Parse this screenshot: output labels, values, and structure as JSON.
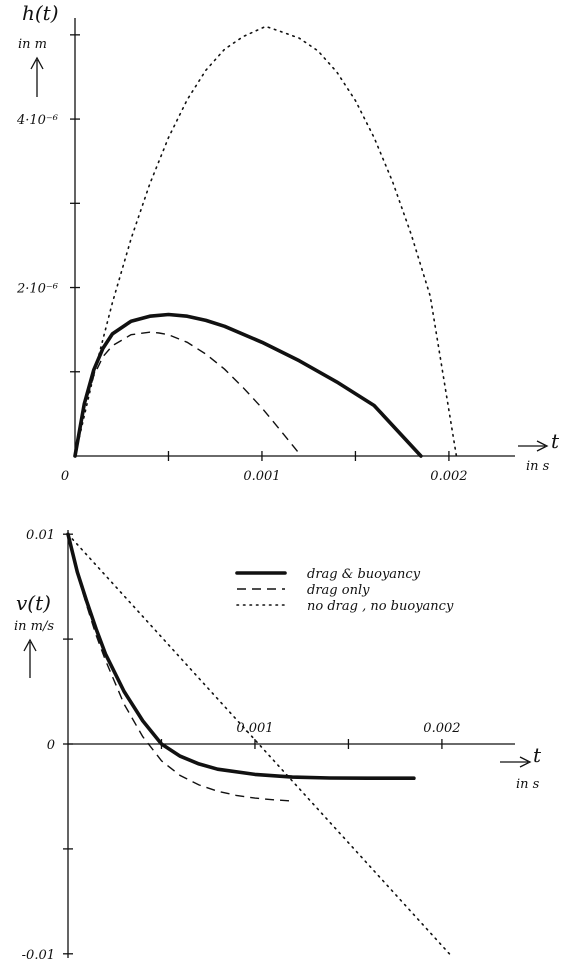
{
  "chart_data": [
    {
      "type": "line",
      "title": "",
      "ylabel": "h(t)",
      "ylabel_unit": "in m",
      "xlabel": "t",
      "xlabel_unit": "in s",
      "xlim": [
        0,
        0.0023
      ],
      "ylim": [
        0,
        5.2e-06
      ],
      "x_tick_labels": [
        {
          "value": 0,
          "label": "0"
        },
        {
          "value": 0.001,
          "label": "0.001"
        },
        {
          "value": 0.002,
          "label": "0.002"
        }
      ],
      "y_tick_labels": [
        {
          "value": 2e-06,
          "label": "2·10⁻⁶"
        },
        {
          "value": 4e-06,
          "label": "4·10⁻⁶"
        }
      ],
      "y_ticks": [
        1e-06,
        2e-06,
        3e-06,
        4e-06,
        5e-06
      ],
      "x_ticks": [
        0.0005,
        0.001,
        0.0015,
        0.002
      ],
      "grid": false,
      "series": [
        {
          "name": "drag & buoyancy",
          "style": "solid",
          "x": [
            0,
            5e-05,
            0.0001,
            0.00015,
            0.0002,
            0.0003,
            0.0004,
            0.0005,
            0.0006,
            0.0007,
            0.0008,
            0.001,
            0.0012,
            0.0014,
            0.0016,
            0.00185
          ],
          "y": [
            0,
            6.2e-07,
            1.02e-06,
            1.28e-06,
            1.45e-06,
            1.6e-06,
            1.66e-06,
            1.68e-06,
            1.66e-06,
            1.61e-06,
            1.54e-06,
            1.35e-06,
            1.13e-06,
            8.8e-07,
            6e-07,
            0
          ]
        },
        {
          "name": "drag only",
          "style": "dashed",
          "x": [
            0,
            5e-05,
            0.0001,
            0.00015,
            0.0002,
            0.0003,
            0.0004,
            0.00045,
            0.0005,
            0.0006,
            0.0007,
            0.0008,
            0.0009,
            0.001,
            0.0011,
            0.00121
          ],
          "y": [
            0,
            5.8e-07,
            9.5e-07,
            1.18e-06,
            1.31e-06,
            1.44e-06,
            1.47e-06,
            1.46e-06,
            1.44e-06,
            1.35e-06,
            1.21e-06,
            1.03e-06,
            8.1e-07,
            5.7e-07,
            3e-07,
            0
          ]
        },
        {
          "name": "no drag , no buoyancy",
          "style": "dotted",
          "x": [
            0,
            0.0001,
            0.0002,
            0.0003,
            0.0004,
            0.0005,
            0.0006,
            0.0007,
            0.0008,
            0.0009,
            0.00102,
            0.0011,
            0.0012,
            0.0013,
            0.0014,
            0.0015,
            0.0016,
            0.0017,
            0.0018,
            0.0019,
            0.00204
          ],
          "y": [
            0,
            9.6e-07,
            1.82e-06,
            2.58e-06,
            3.23e-06,
            3.78e-06,
            4.23e-06,
            4.58e-06,
            4.83e-06,
            4.98e-06,
            5.1e-06,
            5.04e-06,
            4.96e-06,
            4.81e-06,
            4.56e-06,
            4.22e-06,
            3.78e-06,
            3.25e-06,
            2.62e-06,
            1.9e-06,
            0
          ]
        }
      ]
    },
    {
      "type": "line",
      "title": "",
      "ylabel": "v(t)",
      "ylabel_unit": "in m/s",
      "xlabel": "t",
      "xlabel_unit": "in s",
      "xlim": [
        0,
        0.0023
      ],
      "ylim": [
        -0.0102,
        0.0102
      ],
      "x_tick_labels": [
        {
          "value": 0.001,
          "label": "0.001"
        },
        {
          "value": 0.002,
          "label": "0.002"
        }
      ],
      "y_tick_labels": [
        {
          "value": 0.01,
          "label": "0.01"
        },
        {
          "value": 0,
          "label": "0"
        },
        {
          "value": -0.01,
          "label": "-0.01"
        }
      ],
      "y_ticks": [
        0.01,
        0.005,
        0,
        -0.005,
        -0.01
      ],
      "x_ticks": [
        0.0005,
        0.001,
        0.0015,
        0.002
      ],
      "grid": false,
      "legend": "top-right",
      "series": [
        {
          "name": "drag & buoyancy",
          "style": "solid",
          "x": [
            0,
            5e-05,
            0.0001,
            0.00015,
            0.0002,
            0.0003,
            0.0004,
            0.0005,
            0.0006,
            0.0007,
            0.0008,
            0.001,
            0.0012,
            0.0014,
            0.0016,
            0.00185
          ],
          "y": [
            0.01,
            0.0082,
            0.0068,
            0.0055,
            0.0043,
            0.0025,
            0.0011,
            0.0,
            -0.00058,
            -0.00095,
            -0.0012,
            -0.00145,
            -0.00158,
            -0.00162,
            -0.00163,
            -0.00163
          ]
        },
        {
          "name": "drag only",
          "style": "dashed",
          "x": [
            0,
            5e-05,
            0.0001,
            0.00015,
            0.0002,
            0.0003,
            0.0004,
            0.0005,
            0.0006,
            0.0007,
            0.0008,
            0.0009,
            0.001,
            0.0011,
            0.00121
          ],
          "y": [
            0.01,
            0.0081,
            0.0066,
            0.0052,
            0.004,
            0.0019,
            0.00035,
            -0.0008,
            -0.0015,
            -0.00195,
            -0.00225,
            -0.00245,
            -0.00258,
            -0.00266,
            -0.00272
          ]
        },
        {
          "name": "no drag , no buoyancy",
          "style": "dotted",
          "x": [
            0,
            0.00204
          ],
          "y": [
            0.01,
            -0.01
          ]
        }
      ]
    }
  ]
}
